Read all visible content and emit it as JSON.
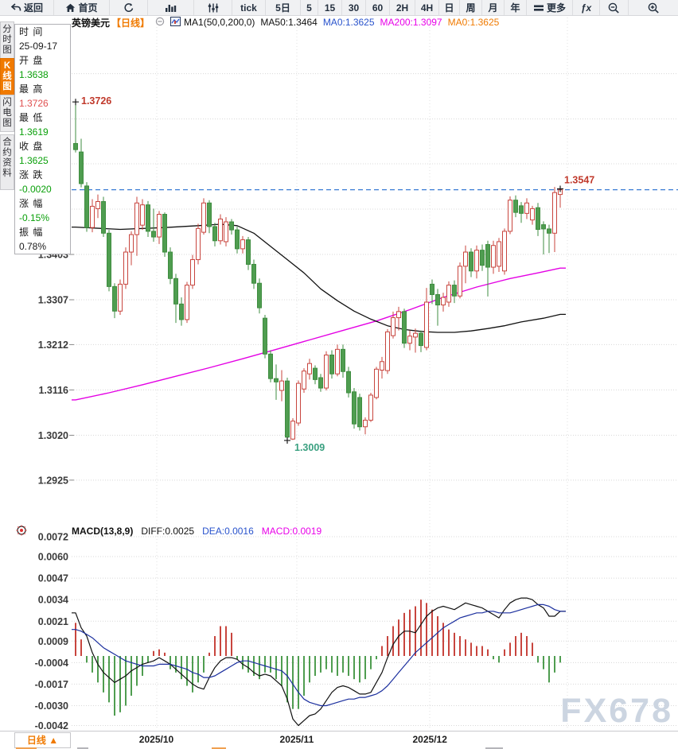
{
  "toolbar": {
    "items": [
      {
        "name": "back",
        "label": "返回",
        "icon": "back-arrow"
      },
      {
        "name": "home",
        "label": "首页",
        "icon": "home"
      },
      {
        "name": "refresh",
        "icon": "refresh"
      },
      {
        "name": "chart-type",
        "icon": "bar-chart"
      },
      {
        "name": "indicator-settings",
        "icon": "sliders"
      },
      {
        "name": "tick",
        "label": "tick"
      },
      {
        "name": "5d",
        "label": "5日"
      },
      {
        "name": "5",
        "label": "5"
      },
      {
        "name": "15",
        "label": "15"
      },
      {
        "name": "30",
        "label": "30"
      },
      {
        "name": "60",
        "label": "60"
      },
      {
        "name": "2h",
        "label": "2H"
      },
      {
        "name": "4h",
        "label": "4H"
      },
      {
        "name": "day",
        "label": "日"
      },
      {
        "name": "week",
        "label": "周"
      },
      {
        "name": "month",
        "label": "月"
      },
      {
        "name": "year",
        "label": "年"
      },
      {
        "name": "more",
        "label": "更多",
        "icon": "more"
      },
      {
        "name": "fx",
        "label": "ƒx"
      },
      {
        "name": "zoom-out",
        "icon": "zoom-out"
      },
      {
        "name": "zoom-in",
        "icon": "zoom-in"
      }
    ]
  },
  "sidebar": {
    "tabs": [
      {
        "name": "time-chart",
        "label": "分时图",
        "active": false
      },
      {
        "name": "kline-chart",
        "label": "K线图",
        "active": true
      },
      {
        "name": "flash-chart",
        "label": "闪电图",
        "active": false
      },
      {
        "name": "contract-info",
        "label": "合约资料",
        "active": false
      }
    ]
  },
  "info_panel": {
    "rows": [
      {
        "label": "时 间",
        "value": "25-09-17",
        "color": "#1a1a1a"
      },
      {
        "label": "开 盘",
        "value": "1.3638",
        "color": "#0aa00a"
      },
      {
        "label": "最 高",
        "value": "1.3726",
        "color": "#e05050"
      },
      {
        "label": "最 低",
        "value": "1.3619",
        "color": "#0aa00a"
      },
      {
        "label": "收 盘",
        "value": "1.3625",
        "color": "#0aa00a"
      },
      {
        "label": "涨 跌",
        "value": "-0.0020",
        "color": "#0aa00a"
      },
      {
        "label": "涨 幅",
        "value": "-0.15%",
        "color": "#0aa00a"
      },
      {
        "label": "振 幅",
        "value": "0.78%",
        "color": "#1a1a1a"
      }
    ]
  },
  "chart_header": {
    "symbol": "英镑美元",
    "period": "【日线】",
    "ma_label": "MA1(50,0,200,0)",
    "ma50": "MA50:1.3464",
    "ma0_blue": "MA0:1.3625",
    "ma200": "MA200:1.3097",
    "ma0_orange": "MA0:1.3625"
  },
  "macd_header": {
    "title": "MACD(13,8,9)",
    "diff": "DIFF:0.0025",
    "dea": "DEA:0.0016",
    "macd": "MACD:0.0019"
  },
  "bottom_bar": {
    "period_label": "日线 ▲"
  },
  "watermark": "FX678",
  "colors": {
    "accent_orange": "#f07a00",
    "up_red": "#c8453e",
    "down_green": "#4f9d50",
    "ma50": "#111111",
    "ma200": "#e400e4",
    "diff_line": "#111111",
    "dea_line": "#1b2f9e",
    "dashed_price_line": "#3a7bd5",
    "grid": "#d8d8d8",
    "axis_text": "#3a3a3a",
    "header_blue": "#2953cc",
    "header_magenta": "#e800e8",
    "green_text": "#0aa00a",
    "red_text": "#d94040",
    "low_label_teal": "#3aa080",
    "watermark": "#ccd5e1"
  },
  "chart_data": {
    "type": "candlestick",
    "title": "GBP/USD daily (英镑美元 日线) with MA50/MA200 and MACD(13,8,9)",
    "x_axis": {
      "labels": [
        {
          "text": "2025/10",
          "index": 14.5
        },
        {
          "text": "2025/11",
          "index": 39.7
        },
        {
          "text": "2025/12",
          "index": 63.6
        }
      ]
    },
    "y_axis": {
      "labels": [
        "1.3403",
        "1.3307",
        "1.3212",
        "1.3116",
        "1.3020",
        "1.2925"
      ],
      "unlabeled_gridlines": [
        1.3499,
        1.3595,
        1.369,
        1.3786
      ]
    },
    "dashed_price_line": 1.354,
    "annotations": {
      "high": {
        "text": "1.3726",
        "index": 0,
        "price": 1.3726
      },
      "low": {
        "text": "1.3009",
        "index": 38,
        "price": 1.3009
      },
      "last": {
        "text": "1.3547",
        "index": 87,
        "price": 1.3547
      }
    },
    "candles": [
      [
        1.3638,
        1.3726,
        1.3619,
        1.3625
      ],
      [
        1.362,
        1.3648,
        1.3545,
        1.3553
      ],
      [
        1.3548,
        1.3556,
        1.3451,
        1.346
      ],
      [
        1.346,
        1.352,
        1.345,
        1.3505
      ],
      [
        1.35,
        1.353,
        1.348,
        1.3515
      ],
      [
        1.3515,
        1.3525,
        1.344,
        1.3448
      ],
      [
        1.3448,
        1.3455,
        1.3325,
        1.3335
      ],
      [
        1.3335,
        1.3342,
        1.3268,
        1.3283
      ],
      [
        1.3283,
        1.335,
        1.3275,
        1.334
      ],
      [
        1.334,
        1.3418,
        1.333,
        1.3408
      ],
      [
        1.3408,
        1.3452,
        1.338,
        1.3445
      ],
      [
        1.3445,
        1.3525,
        1.34,
        1.3512
      ],
      [
        1.3465,
        1.352,
        1.3455,
        1.3508
      ],
      [
        1.3508,
        1.3516,
        1.344,
        1.3452
      ],
      [
        1.3452,
        1.35,
        1.343,
        1.344
      ],
      [
        1.344,
        1.3495,
        1.3425,
        1.3488
      ],
      [
        1.3488,
        1.3492,
        1.3398,
        1.3408
      ],
      [
        1.3408,
        1.3418,
        1.334,
        1.3352
      ],
      [
        1.3352,
        1.3362,
        1.3258,
        1.3298
      ],
      [
        1.3298,
        1.3312,
        1.3252,
        1.3265
      ],
      [
        1.3265,
        1.3345,
        1.3258,
        1.3338
      ],
      [
        1.3338,
        1.3402,
        1.333,
        1.3392
      ],
      [
        1.3392,
        1.3468,
        1.3382,
        1.3458
      ],
      [
        1.345,
        1.3522,
        1.3445,
        1.3512
      ],
      [
        1.3512,
        1.3518,
        1.3448,
        1.3462
      ],
      [
        1.3462,
        1.347,
        1.342,
        1.3432
      ],
      [
        1.3432,
        1.3488,
        1.3424,
        1.3478
      ],
      [
        1.343,
        1.3482,
        1.342,
        1.3472
      ],
      [
        1.3472,
        1.3478,
        1.3445,
        1.3455
      ],
      [
        1.3455,
        1.3462,
        1.3405,
        1.3415
      ],
      [
        1.3415,
        1.3442,
        1.3405,
        1.3434
      ],
      [
        1.3434,
        1.344,
        1.337,
        1.3382
      ],
      [
        1.3382,
        1.3392,
        1.333,
        1.3342
      ],
      [
        1.3342,
        1.3352,
        1.3278,
        1.329
      ],
      [
        1.3268,
        1.3275,
        1.3183,
        1.3192
      ],
      [
        1.3192,
        1.32,
        1.3132,
        1.314
      ],
      [
        1.314,
        1.317,
        1.3095,
        1.3133
      ],
      [
        1.3115,
        1.3158,
        1.3092,
        1.3135
      ],
      [
        1.3135,
        1.3142,
        1.3009,
        1.3016
      ],
      [
        1.3012,
        1.3056,
        1.301,
        1.305
      ],
      [
        1.3046,
        1.3136,
        1.304,
        1.313
      ],
      [
        1.3118,
        1.3162,
        1.311,
        1.3156
      ],
      [
        1.315,
        1.3182,
        1.3138,
        1.3172
      ],
      [
        1.3162,
        1.3168,
        1.3128,
        1.3138
      ],
      [
        1.3142,
        1.315,
        1.3112,
        1.312
      ],
      [
        1.312,
        1.3198,
        1.3115,
        1.319
      ],
      [
        1.319,
        1.32,
        1.314,
        1.315
      ],
      [
        1.315,
        1.3212,
        1.3145,
        1.3202
      ],
      [
        1.3202,
        1.3212,
        1.3142,
        1.3155
      ],
      [
        1.3155,
        1.3165,
        1.31,
        1.311
      ],
      [
        1.3112,
        1.312,
        1.3034,
        1.3044
      ],
      [
        1.31,
        1.3108,
        1.303,
        1.3038
      ],
      [
        1.3038,
        1.3058,
        1.3022,
        1.3052
      ],
      [
        1.3052,
        1.311,
        1.3048,
        1.3105
      ],
      [
        1.31,
        1.3165,
        1.3096,
        1.316
      ],
      [
        1.3158,
        1.3186,
        1.314,
        1.3176
      ],
      [
        1.3157,
        1.3245,
        1.315,
        1.3239
      ],
      [
        1.3231,
        1.3282,
        1.3225,
        1.3269
      ],
      [
        1.3269,
        1.3292,
        1.3242,
        1.3282
      ],
      [
        1.3282,
        1.3288,
        1.3205,
        1.3215
      ],
      [
        1.3215,
        1.3242,
        1.32,
        1.323
      ],
      [
        1.3228,
        1.3246,
        1.3195,
        1.3236
      ],
      [
        1.3236,
        1.3242,
        1.3196,
        1.321
      ],
      [
        1.3206,
        1.3332,
        1.32,
        1.3302
      ],
      [
        1.334,
        1.335,
        1.3298,
        1.3318
      ],
      [
        1.3318,
        1.333,
        1.3252,
        1.3296
      ],
      [
        1.3296,
        1.3322,
        1.3282,
        1.3312
      ],
      [
        1.3302,
        1.3346,
        1.3292,
        1.3338
      ],
      [
        1.3338,
        1.3348,
        1.33,
        1.3315
      ],
      [
        1.3315,
        1.3386,
        1.331,
        1.3378
      ],
      [
        1.3378,
        1.3422,
        1.3342,
        1.3408
      ],
      [
        1.3408,
        1.3416,
        1.3355,
        1.3368
      ],
      [
        1.3368,
        1.3422,
        1.3352,
        1.3412
      ],
      [
        1.3412,
        1.3424,
        1.3368,
        1.338
      ],
      [
        1.3424,
        1.3432,
        1.3314,
        1.3376
      ],
      [
        1.3376,
        1.3432,
        1.3362,
        1.3422
      ],
      [
        1.3378,
        1.3438,
        1.3366,
        1.343
      ],
      [
        1.3368,
        1.3458,
        1.336,
        1.3452
      ],
      [
        1.3452,
        1.3526,
        1.3446,
        1.3518
      ],
      [
        1.3518,
        1.3528,
        1.3482,
        1.3492
      ],
      [
        1.3506,
        1.3514,
        1.347,
        1.349
      ],
      [
        1.349,
        1.3522,
        1.3478,
        1.3512
      ],
      [
        1.3476,
        1.3506,
        1.3466,
        1.35
      ],
      [
        1.3502,
        1.3512,
        1.3442,
        1.3456
      ],
      [
        1.3466,
        1.3473,
        1.3403,
        1.3457
      ],
      [
        1.3457,
        1.3466,
        1.3406,
        1.3448
      ],
      [
        1.3448,
        1.3546,
        1.3408,
        1.3534
      ],
      [
        1.353,
        1.3547,
        1.3502,
        1.354
      ]
    ],
    "ma50_points": [
      [
        0,
        1.3461
      ],
      [
        8,
        1.3456
      ],
      [
        16,
        1.346
      ],
      [
        22,
        1.3464
      ],
      [
        26,
        1.3467
      ],
      [
        29,
        1.3464
      ],
      [
        32,
        1.3448
      ],
      [
        35,
        1.342
      ],
      [
        38,
        1.3392
      ],
      [
        41,
        1.3364
      ],
      [
        44,
        1.333
      ],
      [
        47,
        1.3305
      ],
      [
        50,
        1.3283
      ],
      [
        53,
        1.3266
      ],
      [
        56,
        1.3252
      ],
      [
        59,
        1.3244
      ],
      [
        62,
        1.324
      ],
      [
        65,
        1.3238
      ],
      [
        68,
        1.3238
      ],
      [
        71,
        1.3241
      ],
      [
        74,
        1.3246
      ],
      [
        77,
        1.3252
      ],
      [
        80,
        1.326
      ],
      [
        84,
        1.3268
      ],
      [
        87,
        1.3276
      ]
    ],
    "ma200_points": [
      [
        0,
        1.3095
      ],
      [
        6,
        1.311
      ],
      [
        12,
        1.3127
      ],
      [
        18,
        1.3145
      ],
      [
        24,
        1.3163
      ],
      [
        30,
        1.3182
      ],
      [
        36,
        1.3202
      ],
      [
        42,
        1.3222
      ],
      [
        48,
        1.3242
      ],
      [
        54,
        1.3262
      ],
      [
        60,
        1.3286
      ],
      [
        66,
        1.3312
      ],
      [
        72,
        1.3334
      ],
      [
        78,
        1.3352
      ],
      [
        83,
        1.3364
      ],
      [
        87,
        1.3374
      ]
    ],
    "macd": {
      "params": "13,8,9",
      "y_labels": [
        "0.0072",
        "0.0060",
        "0.0047",
        "0.0034",
        "0.0021",
        "0.0009",
        "-0.0004",
        "-0.0017",
        "-0.0030",
        "-0.0042"
      ],
      "diff": [
        26,
        17,
        12,
        2,
        -5,
        -10,
        -13,
        -16,
        -14,
        -12,
        -9,
        -7,
        -5,
        -4,
        -3,
        -1,
        -3,
        -5,
        -8,
        -11,
        -14,
        -17,
        -19,
        -20,
        -13,
        -7,
        -3,
        -1,
        -1,
        -2,
        -5,
        -7,
        -10,
        -12,
        -11,
        -12,
        -15,
        -18,
        -26,
        -38,
        -42,
        -39,
        -36,
        -35,
        -32,
        -27,
        -22,
        -19,
        -18,
        -19,
        -21,
        -23,
        -23,
        -22,
        -16,
        -10,
        -1,
        7,
        12,
        15,
        15,
        14,
        19,
        24,
        27,
        29,
        30,
        29,
        28,
        30,
        32,
        31,
        30,
        29,
        27,
        25,
        23,
        28,
        32,
        34,
        35,
        35,
        34,
        31,
        29,
        24,
        24,
        27
      ],
      "dea": [
        16,
        15,
        13,
        11,
        8,
        5,
        3,
        1,
        -1,
        -3,
        -4,
        -5,
        -6,
        -6,
        -6,
        -5,
        -5,
        -5,
        -6,
        -7,
        -8,
        -10,
        -11,
        -13,
        -13,
        -12,
        -10,
        -8,
        -6,
        -4,
        -3,
        -3,
        -4,
        -5,
        -6,
        -7,
        -8,
        -9,
        -12,
        -17,
        -22,
        -26,
        -28,
        -29,
        -30,
        -30,
        -29,
        -28,
        -27,
        -26,
        -26,
        -25,
        -25,
        -24,
        -23,
        -21,
        -18,
        -14,
        -10,
        -6,
        -2,
        2,
        5,
        8,
        11,
        14,
        17,
        19,
        21,
        23,
        24,
        25,
        26,
        26,
        27,
        27,
        26,
        26,
        26,
        27,
        28,
        29,
        30,
        31,
        31,
        30,
        28,
        27
      ],
      "hist": [
        20,
        10,
        -4,
        -10,
        -16,
        -22,
        -28,
        -36,
        -34,
        -30,
        -24,
        -18,
        -12,
        -4,
        3,
        4,
        2,
        -8,
        -10,
        -14,
        -18,
        -22,
        -16,
        -10,
        2,
        12,
        18,
        18,
        14,
        -2,
        -8,
        -10,
        -12,
        -14,
        -10,
        -10,
        -14,
        -18,
        -28,
        -32,
        -32,
        -24,
        -16,
        -12,
        -10,
        -8,
        -10,
        -12,
        -10,
        -12,
        -14,
        -16,
        -14,
        -8,
        -2,
        6,
        12,
        18,
        22,
        26,
        28,
        30,
        34,
        32,
        28,
        24,
        20,
        16,
        14,
        12,
        10,
        8,
        6,
        6,
        4,
        -2,
        -4,
        4,
        8,
        12,
        14,
        12,
        8,
        -4,
        -8,
        -16,
        -10,
        -4
      ]
    }
  }
}
